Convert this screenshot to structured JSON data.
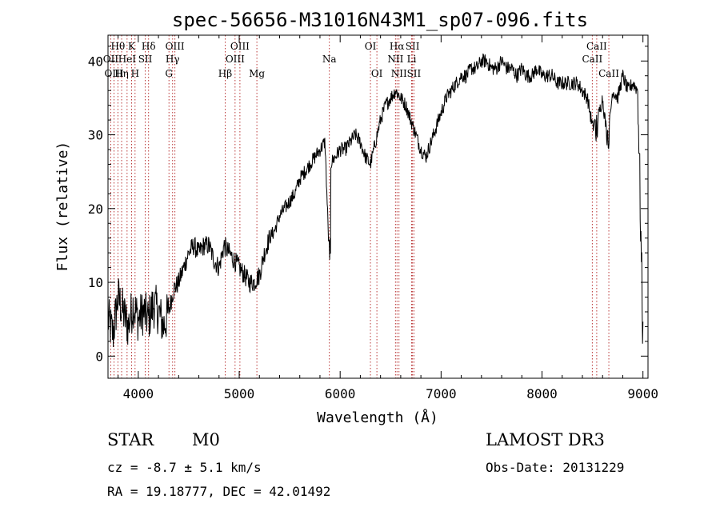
{
  "chart_data": {
    "type": "line",
    "title": "spec-56656-M31016N43M1_sp07-096.fits",
    "xlabel": "Wavelength (Å)",
    "ylabel": "Flux (relative)",
    "xlim": [
      3700,
      9050
    ],
    "ylim": [
      -3,
      43.5
    ],
    "xticks": [
      4000,
      5000,
      6000,
      7000,
      8000,
      9000
    ],
    "yticks": [
      0,
      10,
      20,
      30,
      40
    ],
    "grid": false,
    "line_color": "#000000",
    "marker_color": "#b22222",
    "series": [
      {
        "x": [
          3700,
          3750,
          3800,
          3850,
          3900,
          3950,
          4000,
          4050,
          4100,
          4150,
          4200,
          4250,
          4300,
          4350,
          4400,
          4450,
          4500,
          4550,
          4600,
          4650,
          4700,
          4750,
          4800,
          4850,
          4900,
          4950,
          5000,
          5050,
          5100,
          5150,
          5200,
          5250,
          5300,
          5350,
          5400,
          5450,
          5500,
          5550,
          5600,
          5650,
          5700,
          5750,
          5800,
          5850,
          5890,
          5900,
          5950,
          6000,
          6050,
          6100,
          6150,
          6200,
          6250,
          6300,
          6350,
          6400,
          6450,
          6500,
          6550,
          6600,
          6650,
          6700,
          6750,
          6800,
          6850,
          6900,
          6950,
          7000,
          7050,
          7100,
          7150,
          7200,
          7250,
          7300,
          7350,
          7400,
          7450,
          7500,
          7550,
          7600,
          7650,
          7700,
          7750,
          7800,
          7850,
          7900,
          7950,
          8000,
          8050,
          8100,
          8150,
          8200,
          8250,
          8300,
          8350,
          8400,
          8450,
          8500,
          8550,
          8600,
          8650,
          8700,
          8750,
          8800,
          8850,
          8900,
          8950,
          9000
        ],
        "y": [
          5,
          3,
          8,
          6,
          4,
          7,
          5,
          6,
          5,
          7,
          6,
          4,
          6,
          9,
          10,
          12,
          14,
          15,
          14,
          15,
          15,
          13,
          12,
          15,
          14,
          13,
          12,
          11,
          10,
          10,
          11,
          14,
          16,
          17,
          19,
          20,
          21,
          22,
          24,
          25,
          26,
          27,
          28,
          29,
          14,
          26,
          27,
          28,
          28,
          29,
          30,
          29,
          27,
          26,
          29,
          32,
          34,
          35,
          36,
          35,
          34,
          32,
          30,
          28,
          27,
          29,
          31,
          33,
          35,
          36,
          37,
          38,
          38,
          39,
          39,
          40,
          40,
          39,
          39,
          40,
          39,
          39,
          38,
          39,
          38,
          38,
          39,
          38,
          38,
          38,
          37,
          37,
          37,
          37,
          37,
          36,
          35,
          31,
          32,
          35,
          29,
          36,
          35,
          38,
          36,
          37,
          36,
          2
        ]
      }
    ]
  },
  "line_markers": [
    {
      "label": "Hθ",
      "wavelength": 3798,
      "row": 1
    },
    {
      "label": "OII",
      "wavelength": 3727,
      "row": 2
    },
    {
      "label": "OIII",
      "wavelength": 3760,
      "row": 3
    },
    {
      "label": "K",
      "wavelength": 3934,
      "row": 1
    },
    {
      "label": "HeI",
      "wavelength": 3889,
      "row": 2
    },
    {
      "label": "Hη",
      "wavelength": 3835,
      "row": 3
    },
    {
      "label": "SII",
      "wavelength": 4069,
      "row": 2
    },
    {
      "label": "H",
      "wavelength": 3968,
      "row": 3
    },
    {
      "label": "Hδ",
      "wavelength": 4102,
      "row": 1
    },
    {
      "label": "OIII",
      "wavelength": 4363,
      "row": 1
    },
    {
      "label": "Hγ",
      "wavelength": 4340,
      "row": 2
    },
    {
      "label": "G",
      "wavelength": 4304,
      "row": 3
    },
    {
      "label": "Hβ",
      "wavelength": 4861,
      "row": 3
    },
    {
      "label": "OIII",
      "wavelength": 5007,
      "row": 1
    },
    {
      "label": "OIII",
      "wavelength": 4959,
      "row": 2
    },
    {
      "label": "Mg",
      "wavelength": 5175,
      "row": 3
    },
    {
      "label": "Na",
      "wavelength": 5893,
      "row": 2
    },
    {
      "label": "OI",
      "wavelength": 6300,
      "row": 1
    },
    {
      "label": "OI",
      "wavelength": 6364,
      "row": 3
    },
    {
      "label": "Hα",
      "wavelength": 6563,
      "row": 1
    },
    {
      "label": "NII",
      "wavelength": 6548,
      "row": 2
    },
    {
      "label": "NII",
      "wavelength": 6583,
      "row": 3
    },
    {
      "label": "SII",
      "wavelength": 6717,
      "row": 1
    },
    {
      "label": "Li",
      "wavelength": 6708,
      "row": 2
    },
    {
      "label": "SII",
      "wavelength": 6731,
      "row": 3
    },
    {
      "label": "CaII",
      "wavelength": 8542,
      "row": 1
    },
    {
      "label": "CaII",
      "wavelength": 8498,
      "row": 2
    },
    {
      "label": "CaII",
      "wavelength": 8662,
      "row": 3
    }
  ],
  "info": {
    "object_class": "STAR",
    "subclass": "M0",
    "survey": "LAMOST DR3",
    "cz": "cz = -8.7 ± 5.1 km/s",
    "obs_date": "Obs-Date: 20131229",
    "coords": "RA =  19.18777, DEC =  42.01492"
  }
}
